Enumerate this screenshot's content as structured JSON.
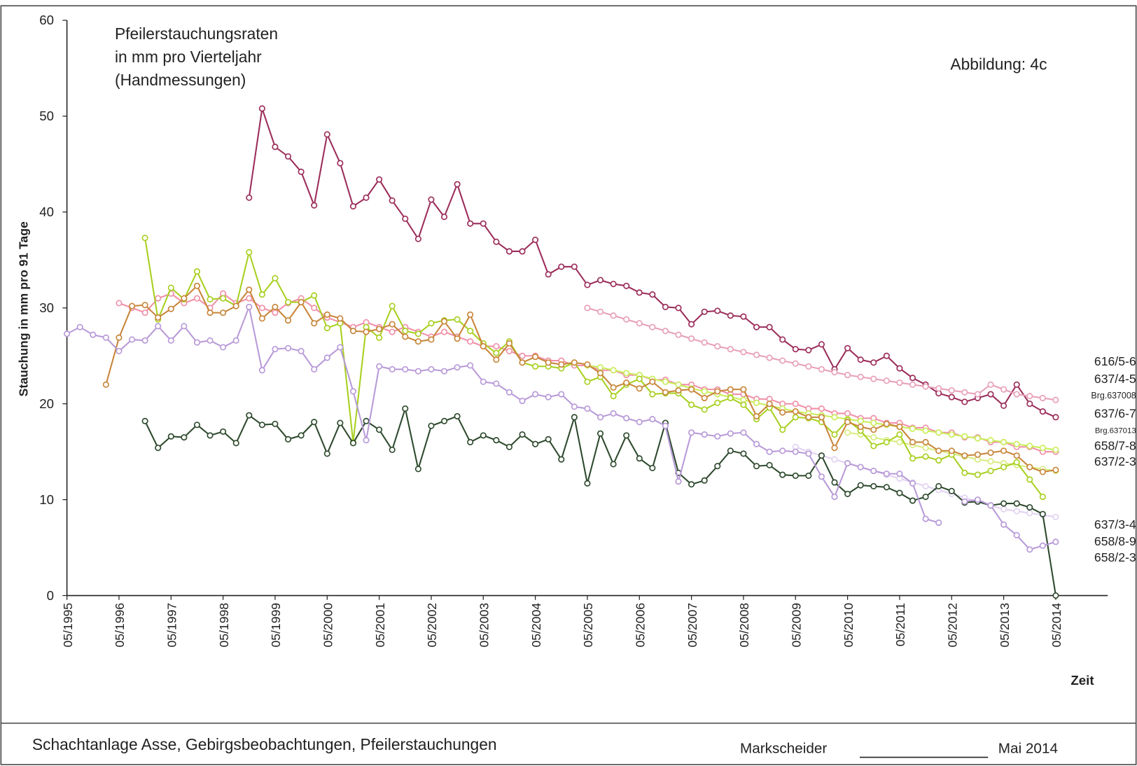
{
  "chart_data": {
    "type": "line",
    "title": [
      "Pfeilerstauchungsraten",
      "in mm pro Vierteljahr",
      "(Handmessungen)"
    ],
    "annotation": "Abbildung:  4c",
    "y_label": "Stauchung in mm pro 91 Tage",
    "x_label": "Zeit",
    "footer": {
      "left": "Schachtanlage Asse, Gebirgsbeobachtungen, Pfeilerstauchungen",
      "signature": "Markscheider",
      "date": "Mai 2014"
    },
    "x": [
      "05/1995",
      "08/1995",
      "11/1995",
      "02/1996",
      "05/1996",
      "08/1996",
      "11/1996",
      "02/1997",
      "05/1997",
      "08/1997",
      "11/1997",
      "02/1998",
      "05/1998",
      "08/1998",
      "11/1998",
      "02/1999",
      "05/1999",
      "08/1999",
      "11/1999",
      "02/2000",
      "05/2000",
      "08/2000",
      "11/2000",
      "02/2001",
      "05/2001",
      "08/2001",
      "11/2001",
      "02/2002",
      "05/2002",
      "08/2002",
      "11/2002",
      "02/2003",
      "05/2003",
      "08/2003",
      "11/2003",
      "02/2004",
      "05/2004",
      "08/2004",
      "11/2004",
      "02/2005",
      "05/2005",
      "08/2005",
      "11/2005",
      "02/2006",
      "05/2006",
      "08/2006",
      "11/2006",
      "02/2007",
      "05/2007",
      "08/2007",
      "11/2007",
      "02/2008",
      "05/2008",
      "08/2008",
      "11/2008",
      "02/2009",
      "05/2009",
      "08/2009",
      "11/2009",
      "02/2010",
      "05/2010",
      "08/2010",
      "11/2010",
      "02/2011",
      "05/2011",
      "08/2011",
      "11/2011",
      "02/2012",
      "05/2012",
      "08/2012",
      "11/2012",
      "02/2013",
      "05/2013",
      "08/2013",
      "11/2013",
      "02/2014",
      "05/2014"
    ],
    "xlim": [
      "05/1995",
      "05/2015"
    ],
    "xticks": [
      "05/1995",
      "05/1996",
      "05/1997",
      "05/1998",
      "05/1999",
      "05/2000",
      "05/2001",
      "05/2002",
      "05/2003",
      "05/2004",
      "05/2005",
      "05/2006",
      "05/2007",
      "05/2008",
      "05/2009",
      "05/2010",
      "05/2011",
      "05/2012",
      "05/2013",
      "05/2014"
    ],
    "ylim": [
      0,
      60
    ],
    "yticks": [
      0,
      10,
      20,
      30,
      40,
      50,
      60
    ],
    "grid": false,
    "markers": true,
    "series": [
      {
        "name": "616/5-6",
        "color": "#9b2d5a",
        "values": [
          null,
          null,
          null,
          null,
          null,
          null,
          null,
          null,
          null,
          null,
          null,
          null,
          null,
          null,
          41.5,
          50.8,
          46.8,
          45.8,
          44.2,
          40.7,
          48.1,
          45.1,
          40.6,
          41.5,
          43.4,
          41.2,
          39.3,
          37.2,
          41.3,
          39.5,
          42.9,
          38.8,
          38.8,
          36.9,
          35.9,
          35.9,
          37.1,
          33.5,
          34.3,
          34.3,
          32.4,
          32.9,
          32.5,
          32.3,
          31.6,
          31.4,
          30.1,
          30.0,
          28.3,
          29.6,
          29.7,
          29.2,
          29.1,
          28.0,
          28.0,
          26.7,
          25.7,
          25.6,
          26.2,
          23.6,
          25.8,
          24.6,
          24.3,
          25.0,
          23.7,
          22.7,
          22.0,
          21.1,
          20.7,
          20.2,
          20.6,
          21.0,
          19.8,
          22.0,
          20.0,
          19.2,
          18.6
        ]
      },
      {
        "name": "637/4-5",
        "color": "#f090a8",
        "values": [
          null,
          null,
          null,
          null,
          30.5,
          30.0,
          29.5,
          31.0,
          31.5,
          30.5,
          31.0,
          30.0,
          31.5,
          30.5,
          31.0,
          30.0,
          29.5,
          30.5,
          31.0,
          30.0,
          29.0,
          28.5,
          28.0,
          28.5,
          28.0,
          27.5,
          28.0,
          27.5,
          27.0,
          27.5,
          27.0,
          26.5,
          26.0,
          26.0,
          25.5,
          25.0,
          25.0,
          24.5,
          24.5,
          24.0,
          24.0,
          23.5,
          23.5,
          23.0,
          23.0,
          22.5,
          22.5,
          22.0,
          22.0,
          21.5,
          21.5,
          21.0,
          21.0,
          20.5,
          20.5,
          20.0,
          20.0,
          19.5,
          19.5,
          19.0,
          19.0,
          18.5,
          18.5,
          18.0,
          18.0,
          17.5,
          17.5,
          17.0,
          17.0,
          16.5,
          16.5,
          16.0,
          16.0,
          15.5,
          15.5,
          15.0,
          15.0
        ]
      },
      {
        "name": "Brg.637008",
        "color": "#e8a0b8",
        "values": [
          null,
          null,
          null,
          null,
          null,
          null,
          null,
          null,
          null,
          null,
          null,
          null,
          null,
          null,
          null,
          null,
          null,
          null,
          null,
          null,
          null,
          null,
          null,
          null,
          null,
          null,
          null,
          null,
          null,
          null,
          null,
          null,
          null,
          null,
          null,
          null,
          null,
          null,
          null,
          null,
          30.0,
          29.6,
          29.2,
          28.8,
          28.4,
          28.0,
          27.6,
          27.2,
          26.8,
          26.4,
          26.0,
          25.7,
          25.4,
          25.1,
          24.8,
          24.5,
          24.2,
          23.9,
          23.6,
          23.3,
          23.0,
          22.8,
          22.6,
          22.4,
          22.2,
          22.0,
          21.8,
          21.6,
          21.4,
          21.2,
          21.0,
          22.0,
          21.5,
          21.0,
          20.8,
          20.6,
          20.4
        ]
      },
      {
        "name": "637/6-7",
        "color": "#c8ee58",
        "values": [
          null,
          null,
          null,
          null,
          null,
          null,
          null,
          null,
          null,
          null,
          null,
          null,
          null,
          null,
          null,
          null,
          null,
          null,
          null,
          null,
          null,
          null,
          null,
          null,
          null,
          null,
          null,
          null,
          null,
          null,
          null,
          null,
          null,
          null,
          null,
          null,
          null,
          null,
          null,
          null,
          24.0,
          23.8,
          23.5,
          23.2,
          23.0,
          22.6,
          22.3,
          22.0,
          21.6,
          21.3,
          21.0,
          20.7,
          20.4,
          20.1,
          19.8,
          19.5,
          19.2,
          19.0,
          18.8,
          18.6,
          18.4,
          18.2,
          18.0,
          17.8,
          17.6,
          17.4,
          17.2,
          17.0,
          16.8,
          16.6,
          16.4,
          16.2,
          16.0,
          15.8,
          15.6,
          15.4,
          15.2
        ]
      },
      {
        "name": "Brg.637013",
        "color": "#d8ec80",
        "values": [
          null,
          null,
          null,
          null,
          null,
          null,
          null,
          null,
          null,
          null,
          null,
          null,
          null,
          null,
          null,
          null,
          null,
          null,
          null,
          null,
          null,
          null,
          null,
          null,
          null,
          null,
          null,
          null,
          null,
          null,
          null,
          null,
          null,
          null,
          null,
          null,
          null,
          null,
          null,
          null,
          null,
          null,
          null,
          null,
          null,
          null,
          null,
          null,
          null,
          null,
          null,
          null,
          null,
          null,
          null,
          null,
          null,
          null,
          null,
          null,
          17.0,
          16.8,
          16.5,
          16.2,
          16.0,
          15.7,
          15.4,
          15.1,
          14.8,
          14.5,
          14.2,
          14.0,
          13.8,
          13.6,
          13.4,
          13.2,
          13.0
        ]
      },
      {
        "name": "658/7-8",
        "color": "#a8d020",
        "values": [
          null,
          null,
          null,
          null,
          null,
          null,
          37.3,
          28.8,
          32.1,
          30.9,
          33.8,
          30.9,
          31.0,
          30.2,
          35.8,
          31.4,
          33.1,
          30.6,
          30.6,
          31.3,
          27.9,
          28.4,
          16.0,
          28.0,
          26.9,
          30.2,
          27.6,
          27.3,
          28.4,
          28.7,
          28.8,
          27.6,
          26.3,
          25.3,
          26.5,
          24.3,
          23.9,
          23.9,
          23.7,
          24.3,
          22.3,
          22.8,
          20.8,
          22.0,
          22.6,
          21.0,
          21.1,
          21.1,
          19.9,
          19.4,
          20.1,
          20.6,
          19.9,
          18.4,
          19.6,
          17.3,
          18.6,
          18.5,
          18.1,
          16.8,
          18.3,
          17.2,
          15.6,
          16.0,
          16.8,
          14.3,
          14.5,
          14.1,
          14.7,
          12.8,
          12.6,
          13.0,
          13.4,
          13.9,
          12.1,
          10.3,
          null
        ]
      },
      {
        "name": "637/2-3",
        "color": "#c8863a",
        "values": [
          null,
          null,
          null,
          22.0,
          26.9,
          30.2,
          30.3,
          29.0,
          29.9,
          31.0,
          32.3,
          29.5,
          29.5,
          30.2,
          31.9,
          28.9,
          30.1,
          28.7,
          30.6,
          28.4,
          29.3,
          28.9,
          27.6,
          27.5,
          27.8,
          28.3,
          27.0,
          26.5,
          26.7,
          28.6,
          26.8,
          29.3,
          26.0,
          24.6,
          26.3,
          24.3,
          24.9,
          24.3,
          24.1,
          24.3,
          24.1,
          23.2,
          21.7,
          22.2,
          21.6,
          22.3,
          21.2,
          21.4,
          21.5,
          20.6,
          21.3,
          21.5,
          21.5,
          18.7,
          20.0,
          19.1,
          19.2,
          18.6,
          18.6,
          15.4,
          18.1,
          17.6,
          17.3,
          17.9,
          17.6,
          16.0,
          16.0,
          15.1,
          15.1,
          14.6,
          14.7,
          14.9,
          15.1,
          14.6,
          13.4,
          12.9,
          13.1
        ]
      },
      {
        "name": "637/3-4",
        "color": "#e2d2f2",
        "values": [
          null,
          null,
          null,
          null,
          null,
          null,
          null,
          null,
          null,
          null,
          null,
          null,
          null,
          null,
          null,
          null,
          null,
          null,
          null,
          null,
          null,
          null,
          null,
          null,
          null,
          null,
          null,
          null,
          null,
          null,
          null,
          null,
          null,
          null,
          null,
          null,
          null,
          null,
          null,
          null,
          null,
          null,
          null,
          null,
          null,
          null,
          null,
          null,
          null,
          null,
          null,
          null,
          null,
          null,
          null,
          null,
          15.5,
          15.0,
          14.6,
          14.2,
          13.8,
          13.4,
          13.0,
          12.6,
          12.2,
          11.8,
          11.4,
          11.0,
          10.6,
          10.2,
          9.8,
          9.4,
          9.0,
          8.8,
          8.6,
          8.4,
          8.2
        ]
      },
      {
        "name": "658/8-9",
        "color": "#2e4a2e",
        "values": [
          null,
          null,
          null,
          null,
          null,
          null,
          18.2,
          15.4,
          16.6,
          16.5,
          17.8,
          16.7,
          17.1,
          15.9,
          18.8,
          17.8,
          17.9,
          16.3,
          16.7,
          18.1,
          14.8,
          18.0,
          15.9,
          18.2,
          17.3,
          15.2,
          19.5,
          13.2,
          17.7,
          18.2,
          18.7,
          16.0,
          16.7,
          16.2,
          15.5,
          16.8,
          15.8,
          16.3,
          14.2,
          18.6,
          11.7,
          16.9,
          13.7,
          16.7,
          14.3,
          13.3,
          18.0,
          12.8,
          11.6,
          12.0,
          13.5,
          15.1,
          14.8,
          13.5,
          13.6,
          12.6,
          12.5,
          12.5,
          14.6,
          11.8,
          10.6,
          11.5,
          11.4,
          11.3,
          10.7,
          9.9,
          10.3,
          11.4,
          10.9,
          9.7,
          9.8,
          9.4,
          9.6,
          9.6,
          9.2,
          8.5,
          0
        ]
      },
      {
        "name": "658/2-3",
        "color": "#b89ad8",
        "values": [
          27.3,
          28.0,
          27.2,
          26.9,
          25.5,
          26.7,
          26.6,
          28.1,
          26.6,
          28.1,
          26.4,
          26.6,
          25.9,
          26.6,
          30.1,
          23.5,
          25.7,
          25.8,
          25.5,
          23.6,
          24.8,
          25.9,
          21.3,
          16.2,
          23.9,
          23.6,
          23.6,
          23.4,
          23.6,
          23.4,
          23.8,
          24.0,
          22.3,
          22.1,
          21.2,
          20.3,
          21.0,
          20.7,
          21.0,
          19.7,
          19.5,
          18.6,
          19.0,
          18.5,
          18.1,
          18.4,
          17.7,
          11.9,
          17.0,
          16.8,
          16.6,
          16.9,
          17.0,
          15.8,
          15.0,
          15.1,
          15.0,
          14.8,
          12.4,
          10.3,
          13.8,
          13.4,
          13.0,
          12.7,
          12.7,
          11.7,
          8.0,
          7.6,
          null,
          9.8,
          10.0,
          9.4,
          7.4,
          6.3,
          4.8,
          5.2,
          5.6
        ]
      }
    ]
  }
}
